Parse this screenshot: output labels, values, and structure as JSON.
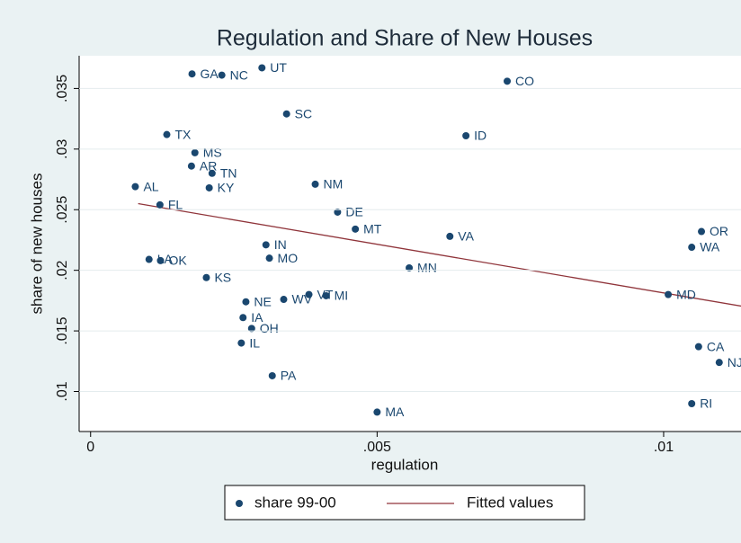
{
  "chart_data": {
    "type": "scatter",
    "title": "Regulation and Share of New Houses",
    "x_label": "regulation",
    "y_label": "share of new houses",
    "xlim": [
      -0.0002,
      0.01135
    ],
    "ylim": [
      0.0067,
      0.0377
    ],
    "xticks": [
      0,
      {
        "value": 0.005,
        "label": ".005"
      },
      {
        "value": 0.01,
        "label": ".01"
      }
    ],
    "yticks": [
      {
        "value": 0.01,
        "label": ".01"
      },
      {
        "value": 0.015,
        "label": ".015"
      },
      {
        "value": 0.02,
        "label": ".02"
      },
      {
        "value": 0.025,
        "label": ".025"
      },
      {
        "value": 0.03,
        "label": ".03"
      },
      {
        "value": 0.035,
        "label": ".035"
      }
    ],
    "grid": true,
    "legend": "bottom",
    "series": [
      {
        "name": "share 99-00",
        "color": "#1a476f",
        "labels": [
          "GA",
          "NC",
          "UT",
          "CO",
          "SC",
          "TX",
          "ID",
          "MS",
          "AR",
          "TN",
          "AL",
          "KY",
          "NM",
          "FL",
          "DE",
          "MT",
          "VA",
          "OR",
          "WA",
          "IN",
          "MO",
          "LA",
          "OK",
          "MN",
          "KS",
          "MD",
          "VT",
          "WV",
          "MI",
          "NE",
          "IA",
          "OH",
          "IL",
          "PA",
          "CA",
          "NJ",
          "RI",
          "MA"
        ],
        "x": [
          0.00177,
          0.00229,
          0.00299,
          0.00727,
          0.00342,
          0.00133,
          0.00655,
          0.00182,
          0.00176,
          0.00212,
          0.00078,
          0.00207,
          0.00392,
          0.00121,
          0.00431,
          0.00462,
          0.00627,
          0.01066,
          0.01049,
          0.00306,
          0.00312,
          0.00102,
          0.00122,
          0.00556,
          0.00202,
          0.01008,
          0.00381,
          0.00337,
          0.00411,
          0.00271,
          0.00266,
          0.00281,
          0.00263,
          0.00317,
          0.01061,
          0.01097,
          0.01049,
          0.005
        ],
        "values": [
          0.0362,
          0.0361,
          0.0367,
          0.0356,
          0.0329,
          0.0312,
          0.0311,
          0.0297,
          0.0286,
          0.028,
          0.0269,
          0.0268,
          0.0271,
          0.0254,
          0.0248,
          0.0234,
          0.0228,
          0.0232,
          0.0219,
          0.0221,
          0.021,
          0.0209,
          0.0208,
          0.0202,
          0.0194,
          0.018,
          0.018,
          0.0176,
          0.0179,
          0.0174,
          0.0161,
          0.0152,
          0.014,
          0.0113,
          0.0137,
          0.0124,
          0.009,
          0.0083
        ]
      },
      {
        "name": "Fitted values",
        "color": "#90353b",
        "x": [
          0.00083,
          0.01141
        ],
        "values": [
          0.0255,
          0.017
        ]
      }
    ]
  }
}
